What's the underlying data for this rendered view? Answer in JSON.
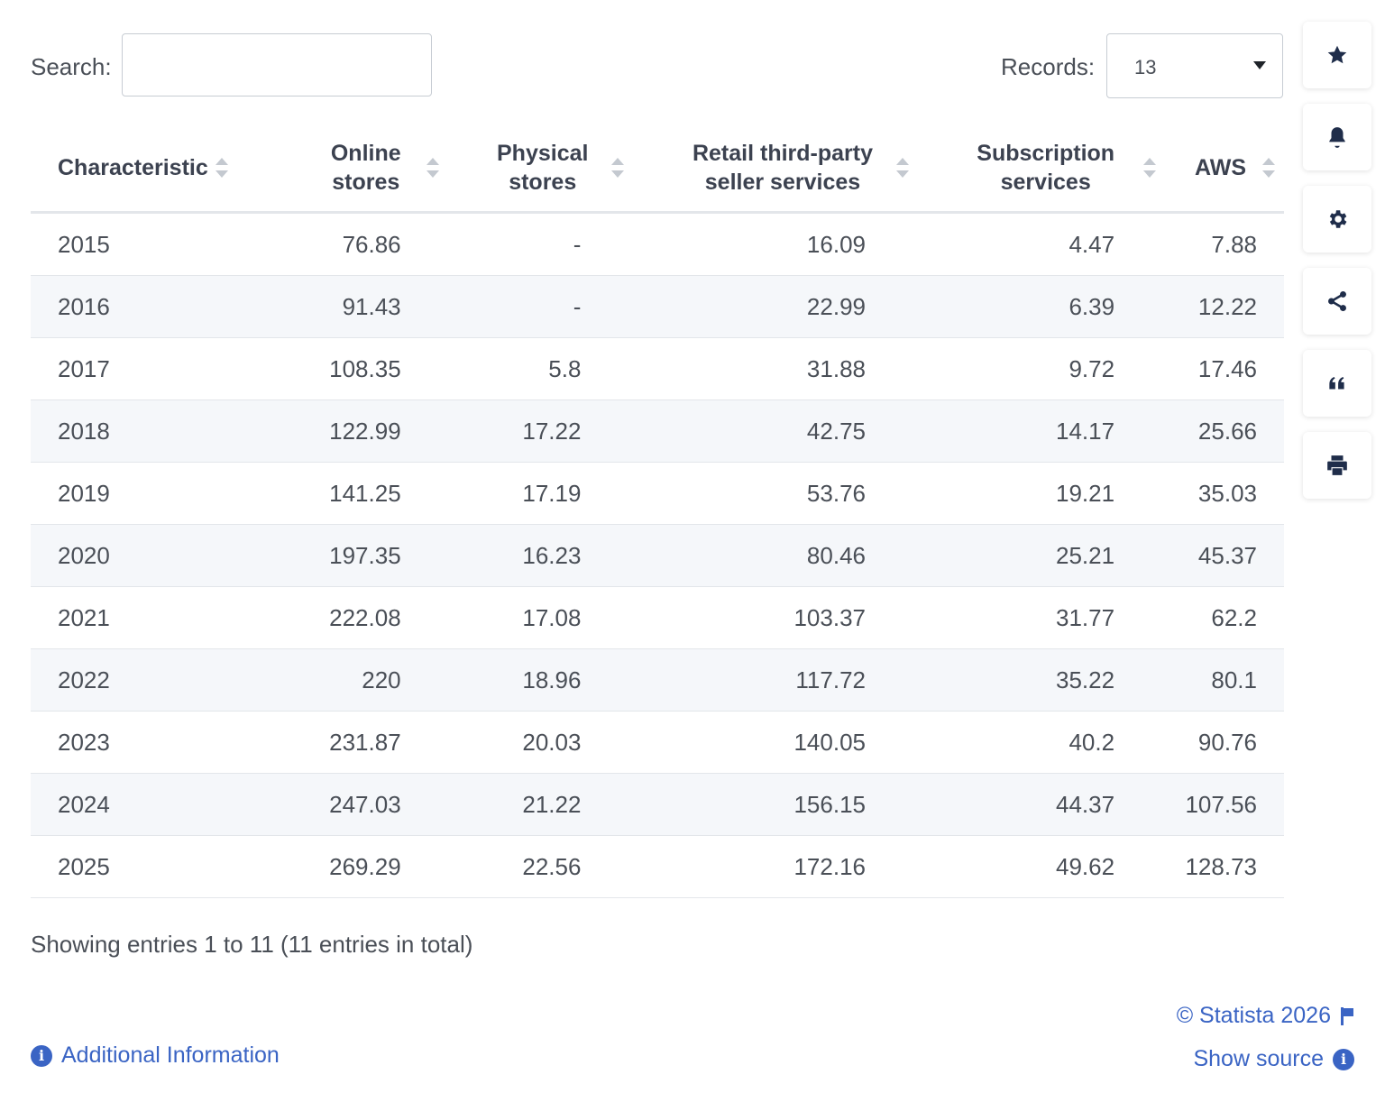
{
  "controls": {
    "search_label": "Search:",
    "records_label": "Records:",
    "records_value": "13"
  },
  "chart_data": {
    "type": "table",
    "columns": [
      "Characteristic",
      "Online stores",
      "Physical stores",
      "Retail third-party seller services",
      "Subscription services",
      "AWS"
    ],
    "header_lines": [
      [
        "Characteristic"
      ],
      [
        "Online",
        "stores"
      ],
      [
        "Physical",
        "stores"
      ],
      [
        "Retail third-party",
        "seller services"
      ],
      [
        "Subscription",
        "services"
      ],
      [
        "AWS"
      ]
    ],
    "rows": [
      [
        "2015",
        "76.86",
        "-",
        "16.09",
        "4.47",
        "7.88"
      ],
      [
        "2016",
        "91.43",
        "-",
        "22.99",
        "6.39",
        "12.22"
      ],
      [
        "2017",
        "108.35",
        "5.8",
        "31.88",
        "9.72",
        "17.46"
      ],
      [
        "2018",
        "122.99",
        "17.22",
        "42.75",
        "14.17",
        "25.66"
      ],
      [
        "2019",
        "141.25",
        "17.19",
        "53.76",
        "19.21",
        "35.03"
      ],
      [
        "2020",
        "197.35",
        "16.23",
        "80.46",
        "25.21",
        "45.37"
      ],
      [
        "2021",
        "222.08",
        "17.08",
        "103.37",
        "31.77",
        "62.2"
      ],
      [
        "2022",
        "220",
        "18.96",
        "117.72",
        "35.22",
        "80.1"
      ],
      [
        "2023",
        "231.87",
        "20.03",
        "140.05",
        "40.2",
        "90.76"
      ],
      [
        "2024",
        "247.03",
        "21.22",
        "156.15",
        "44.37",
        "107.56"
      ],
      [
        "2025",
        "269.29",
        "22.56",
        "172.16",
        "49.62",
        "128.73"
      ]
    ]
  },
  "footer": {
    "summary": "Showing entries 1 to 11 (11 entries in total)",
    "additional_info": "Additional Information",
    "copyright": "© Statista 2026",
    "show_source": "Show source"
  },
  "icons": {
    "info": "i",
    "side": [
      "star-icon",
      "bell-icon",
      "gear-icon",
      "share-icon",
      "quote-icon",
      "print-icon"
    ]
  }
}
